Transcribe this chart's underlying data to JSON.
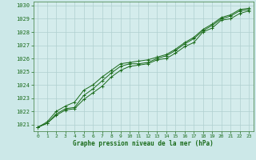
{
  "xlabel": "Graphe pression niveau de la mer (hPa)",
  "ylabel": "",
  "background_color": "#cce8e8",
  "plot_background_color": "#d4ecec",
  "grid_color": "#b0d0d0",
  "line_color": "#1a6b1a",
  "marker_color": "#1a6b1a",
  "ylim": [
    1020.5,
    1030.3
  ],
  "xlim": [
    -0.5,
    23.5
  ],
  "yticks": [
    1021,
    1022,
    1023,
    1024,
    1025,
    1026,
    1027,
    1028,
    1029,
    1030
  ],
  "xticks": [
    0,
    1,
    2,
    3,
    4,
    5,
    6,
    7,
    8,
    9,
    10,
    11,
    12,
    13,
    14,
    15,
    16,
    17,
    18,
    19,
    20,
    21,
    22,
    23
  ],
  "series1": {
    "x": [
      0,
      1,
      2,
      3,
      4,
      5,
      6,
      7,
      8,
      9,
      10,
      11,
      12,
      13,
      14,
      15,
      16,
      17,
      18,
      19,
      20,
      21,
      22,
      23
    ],
    "y": [
      1020.8,
      1021.1,
      1021.7,
      1022.1,
      1022.2,
      1022.9,
      1023.4,
      1023.9,
      1024.6,
      1025.1,
      1025.4,
      1025.5,
      1025.6,
      1025.9,
      1026.0,
      1026.4,
      1026.9,
      1027.2,
      1028.0,
      1028.3,
      1028.9,
      1029.0,
      1029.4,
      1029.6
    ]
  },
  "series2": {
    "x": [
      0,
      1,
      2,
      3,
      4,
      5,
      6,
      7,
      8,
      9,
      10,
      11,
      12,
      13,
      14,
      15,
      16,
      17,
      18,
      19,
      20,
      21,
      22,
      23
    ],
    "y": [
      1020.8,
      1021.1,
      1021.8,
      1022.2,
      1022.3,
      1023.2,
      1023.7,
      1024.3,
      1024.9,
      1025.4,
      1025.6,
      1025.6,
      1025.7,
      1026.0,
      1026.2,
      1026.6,
      1027.1,
      1027.5,
      1028.1,
      1028.5,
      1029.0,
      1029.2,
      1029.6,
      1029.7
    ]
  },
  "series3": {
    "x": [
      0,
      1,
      2,
      3,
      4,
      5,
      6,
      7,
      8,
      9,
      10,
      11,
      12,
      13,
      14,
      15,
      16,
      17,
      18,
      19,
      20,
      21,
      22,
      23
    ],
    "y": [
      1020.8,
      1021.2,
      1022.0,
      1022.4,
      1022.7,
      1023.6,
      1024.0,
      1024.6,
      1025.1,
      1025.6,
      1025.7,
      1025.8,
      1025.9,
      1026.1,
      1026.3,
      1026.7,
      1027.2,
      1027.6,
      1028.2,
      1028.6,
      1029.1,
      1029.3,
      1029.7,
      1029.8
    ]
  }
}
